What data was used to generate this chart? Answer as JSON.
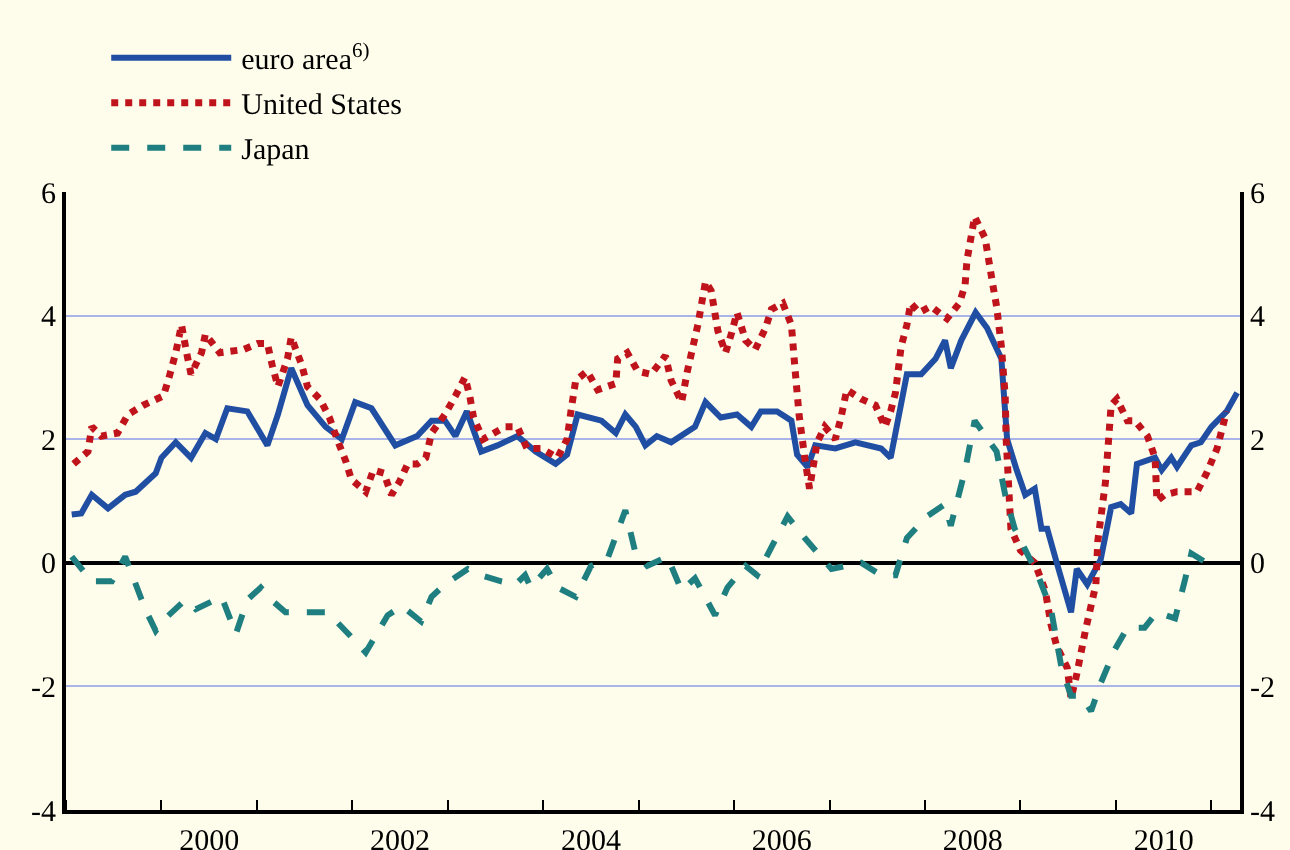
{
  "chart_data": {
    "type": "line",
    "xlim": [
      1999,
      2011.3
    ],
    "xticks": [
      {
        "value": 1999,
        "label": null
      },
      {
        "value": 2000,
        "label": null
      },
      {
        "value": 2001,
        "label": null
      },
      {
        "value": 2002,
        "label": null
      },
      {
        "value": 2003,
        "label": null
      },
      {
        "value": 2004,
        "label": null
      },
      {
        "value": 2005,
        "label": null
      },
      {
        "value": 2006,
        "label": null
      },
      {
        "value": 2007,
        "label": null
      },
      {
        "value": 2008,
        "label": null
      },
      {
        "value": 2009,
        "label": null
      },
      {
        "value": 2010,
        "label": null
      },
      {
        "value": 2011,
        "label": null
      },
      {
        "value": 2000.5,
        "label": "2000"
      },
      {
        "value": 2002.5,
        "label": "2002"
      },
      {
        "value": 2004.5,
        "label": "2004"
      },
      {
        "value": 2006.5,
        "label": "2006"
      },
      {
        "value": 2008.5,
        "label": "2008"
      },
      {
        "value": 2010.5,
        "label": "2010"
      }
    ],
    "ylim": [
      -4,
      6
    ],
    "yticks": [
      -4,
      -2,
      0,
      2,
      4,
      6
    ],
    "y2lim": [
      -4,
      6
    ],
    "y2ticks": [
      -4,
      -2,
      0,
      2,
      4,
      6
    ],
    "grid": "y",
    "legend": "top left",
    "marker": "none",
    "series": [
      {
        "name": "euro area$^{6)}$",
        "color": "#1f4ea3",
        "line_style": "solid",
        "x": [
          1999.06,
          1999.16,
          1999.27,
          1999.44,
          1999.62,
          1999.73,
          1999.94,
          2000.0,
          2000.15,
          2000.31,
          2000.46,
          2000.57,
          2000.69,
          2000.9,
          2001.11,
          2001.22,
          2001.36,
          2001.53,
          2001.72,
          2001.89,
          2002.03,
          2002.2,
          2002.45,
          2002.68,
          2002.83,
          2002.97,
          2003.08,
          2003.2,
          2003.35,
          2003.52,
          2003.73,
          2003.92,
          2004.13,
          2004.25,
          2004.36,
          2004.61,
          2004.76,
          2004.86,
          2004.97,
          2005.07,
          2005.19,
          2005.34,
          2005.59,
          2005.7,
          2005.86,
          2006.03,
          2006.18,
          2006.28,
          2006.45,
          2006.6,
          2006.66,
          2006.77,
          2006.85,
          2007.06,
          2007.27,
          2007.54,
          2007.64,
          2007.81,
          2007.96,
          2008.11,
          2008.21,
          2008.27,
          2008.38,
          2008.53,
          2008.65,
          2008.8,
          2008.86,
          2008.96,
          2009.05,
          2009.15,
          2009.22,
          2009.28,
          2009.38,
          2009.53,
          2009.59,
          2009.7,
          2009.84,
          2009.95,
          2010.05,
          2010.16,
          2010.22,
          2010.41,
          2010.48,
          2010.58,
          2010.64,
          2010.79,
          2010.89,
          2011.0,
          2011.16,
          2011.27
        ],
        "values": [
          0.78,
          0.8,
          1.1,
          0.88,
          1.1,
          1.15,
          1.45,
          1.7,
          1.95,
          1.7,
          2.1,
          2.0,
          2.5,
          2.45,
          1.9,
          2.4,
          3.15,
          2.55,
          2.2,
          2.0,
          2.6,
          2.5,
          1.9,
          2.05,
          2.3,
          2.3,
          2.05,
          2.45,
          1.8,
          1.9,
          2.05,
          1.8,
          1.6,
          1.75,
          2.4,
          2.3,
          2.1,
          2.4,
          2.2,
          1.9,
          2.05,
          1.95,
          2.2,
          2.6,
          2.35,
          2.4,
          2.2,
          2.45,
          2.45,
          2.3,
          1.75,
          1.55,
          1.9,
          1.85,
          1.95,
          1.85,
          1.7,
          3.05,
          3.05,
          3.3,
          3.6,
          3.15,
          3.6,
          4.05,
          3.8,
          3.3,
          2.0,
          1.5,
          1.1,
          1.2,
          0.55,
          0.55,
          0.0,
          -0.8,
          -0.1,
          -0.35,
          0.05,
          0.9,
          0.95,
          0.8,
          1.6,
          1.7,
          1.5,
          1.7,
          1.55,
          1.9,
          1.95,
          2.2,
          2.45,
          2.75
        ]
      },
      {
        "name": "United States",
        "color": "#c0141c",
        "line_style": "dotted",
        "x": [
          1999.08,
          1999.23,
          1999.27,
          1999.37,
          1999.54,
          1999.65,
          1999.81,
          2000.02,
          2000.08,
          2000.15,
          2000.21,
          2000.27,
          2000.31,
          2000.42,
          2000.46,
          2000.61,
          2000.86,
          2001.01,
          2001.11,
          2001.16,
          2001.22,
          2001.32,
          2001.36,
          2001.47,
          2001.53,
          2001.66,
          2001.76,
          2001.84,
          2001.93,
          2001.99,
          2002.14,
          2002.22,
          2002.33,
          2002.41,
          2002.49,
          2002.58,
          2002.68,
          2002.77,
          2002.83,
          2002.97,
          2003.08,
          2003.18,
          2003.23,
          2003.27,
          2003.37,
          2003.6,
          2003.73,
          2003.83,
          2003.98,
          2004.15,
          2004.25,
          2004.29,
          2004.34,
          2004.46,
          2004.57,
          2004.76,
          2004.78,
          2004.88,
          2004.99,
          2005.13,
          2005.28,
          2005.34,
          2005.45,
          2005.51,
          2005.62,
          2005.7,
          2005.76,
          2005.83,
          2005.91,
          2005.97,
          2006.03,
          2006.12,
          2006.22,
          2006.33,
          2006.39,
          2006.51,
          2006.6,
          2006.64,
          2006.66,
          2006.68,
          2006.74,
          2006.79,
          2006.87,
          2006.95,
          2007.06,
          2007.12,
          2007.18,
          2007.33,
          2007.48,
          2007.58,
          2007.64,
          2007.69,
          2007.75,
          2007.81,
          2007.85,
          2007.94,
          2008.06,
          2008.23,
          2008.36,
          2008.42,
          2008.44,
          2008.52,
          2008.63,
          2008.71,
          2008.75,
          2008.8,
          2008.84,
          2008.85,
          2008.9,
          2009.0,
          2009.15,
          2009.26,
          2009.32,
          2009.38,
          2009.49,
          2009.53,
          2009.59,
          2009.68,
          2009.79,
          2009.81,
          2009.89,
          2009.95,
          2010.01,
          2010.12,
          2010.2,
          2010.33,
          2010.41,
          2010.43,
          2010.51,
          2010.64,
          2010.85,
          2010.95,
          2011.06,
          2011.16
        ],
        "values": [
          1.6,
          1.8,
          2.2,
          2.05,
          2.1,
          2.4,
          2.55,
          2.7,
          3.0,
          3.4,
          3.85,
          3.35,
          3.05,
          3.4,
          3.7,
          3.4,
          3.45,
          3.55,
          3.55,
          3.2,
          2.85,
          3.3,
          3.65,
          3.2,
          2.85,
          2.65,
          2.35,
          2.0,
          1.65,
          1.35,
          1.15,
          1.5,
          1.45,
          1.1,
          1.3,
          1.6,
          1.6,
          1.7,
          2.1,
          2.4,
          2.7,
          3.0,
          2.7,
          2.35,
          2.0,
          2.2,
          2.2,
          1.85,
          1.85,
          1.7,
          2.0,
          2.45,
          2.95,
          3.1,
          2.8,
          2.9,
          3.3,
          3.4,
          3.1,
          3.05,
          3.35,
          2.95,
          2.6,
          3.1,
          3.85,
          4.55,
          4.4,
          3.75,
          3.4,
          3.7,
          4.05,
          3.6,
          3.45,
          3.8,
          4.1,
          4.2,
          3.85,
          3.1,
          2.75,
          2.4,
          1.7,
          1.2,
          1.95,
          2.2,
          2.0,
          2.35,
          2.8,
          2.65,
          2.55,
          2.2,
          2.45,
          2.75,
          3.5,
          3.85,
          4.2,
          4.05,
          4.15,
          3.95,
          4.2,
          4.5,
          4.9,
          5.6,
          5.25,
          4.5,
          4.15,
          3.5,
          2.7,
          2.0,
          0.55,
          0.2,
          0.0,
          -0.45,
          -1.0,
          -1.35,
          -1.7,
          -2.2,
          -1.8,
          -1.1,
          -0.35,
          0.35,
          1.3,
          2.55,
          2.65,
          2.3,
          2.3,
          2.05,
          1.7,
          1.0,
          1.1,
          1.15,
          1.15,
          1.45,
          1.85,
          2.45
        ]
      },
      {
        "name": "Japan",
        "color": "#1f7f80",
        "line_style": "dashed",
        "x": [
          1999.06,
          1999.27,
          1999.48,
          1999.62,
          1999.83,
          1999.94,
          2000.04,
          2000.25,
          2000.36,
          2000.63,
          2000.78,
          2000.9,
          2001.04,
          2001.15,
          2001.3,
          2001.74,
          2001.99,
          2002.14,
          2002.37,
          2002.52,
          2002.72,
          2002.83,
          2002.97,
          2003.21,
          2003.35,
          2003.56,
          2003.71,
          2003.81,
          2003.87,
          2004.04,
          2004.15,
          2004.34,
          2004.5,
          2004.67,
          2004.86,
          2004.96,
          2005.09,
          2005.3,
          2005.45,
          2005.59,
          2005.8,
          2005.93,
          2006.12,
          2006.24,
          2006.39,
          2006.56,
          2006.74,
          2007.02,
          2007.33,
          2007.54,
          2007.69,
          2007.81,
          2008.02,
          2008.21,
          2008.27,
          2008.42,
          2008.52,
          2008.75,
          2008.84,
          2008.94,
          2009.07,
          2009.17,
          2009.32,
          2009.43,
          2009.53,
          2009.63,
          2009.74,
          2009.84,
          2009.99,
          2010.12,
          2010.3,
          2010.43,
          2010.62,
          2010.72,
          2010.79,
          2010.95
        ],
        "values": [
          0.1,
          -0.3,
          -0.3,
          0.1,
          -0.75,
          -1.1,
          -0.9,
          -0.6,
          -0.75,
          -0.55,
          -1.15,
          -0.6,
          -0.4,
          -0.6,
          -0.8,
          -0.8,
          -1.2,
          -1.45,
          -0.85,
          -0.7,
          -0.95,
          -0.55,
          -0.35,
          -0.1,
          -0.2,
          -0.3,
          -0.35,
          -0.2,
          -0.4,
          -0.1,
          -0.4,
          -0.55,
          -0.05,
          0.05,
          0.85,
          0.2,
          -0.05,
          0.1,
          -0.45,
          -0.25,
          -0.85,
          -0.4,
          -0.05,
          -0.2,
          0.25,
          0.75,
          0.4,
          -0.1,
          0.0,
          -0.2,
          -0.2,
          0.4,
          0.75,
          0.95,
          0.6,
          1.5,
          2.3,
          1.8,
          1.1,
          0.55,
          0.15,
          -0.15,
          -0.75,
          -1.7,
          -2.15,
          -2.15,
          -2.4,
          -1.95,
          -1.4,
          -1.05,
          -1.05,
          -0.8,
          -0.9,
          -0.3,
          0.15,
          0.0
        ]
      }
    ]
  }
}
